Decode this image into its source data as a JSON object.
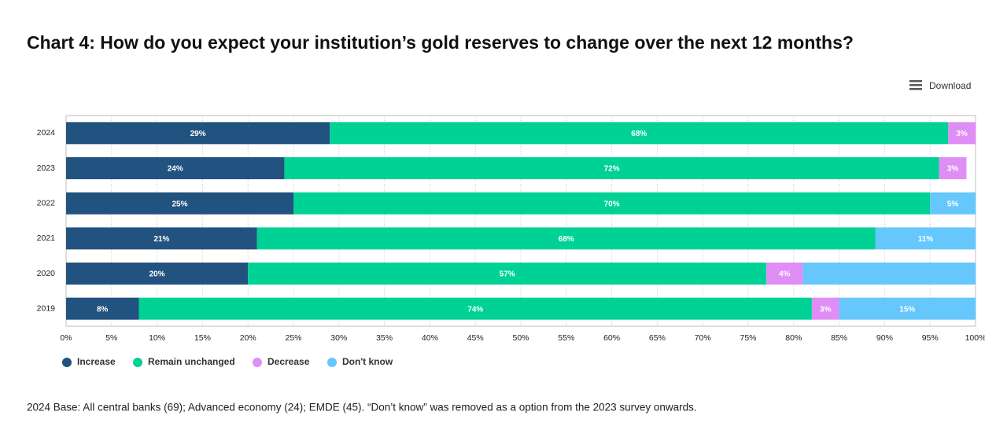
{
  "toolbar": {
    "download": "Download"
  },
  "chart_data": {
    "type": "stacked-bar-horizontal",
    "title": "Chart 4: How do you expect your institution’s gold reserves to change over the next 12 months?",
    "note": "2024 Base: All central banks (69); Advanced economy (24); EMDE (45). “Don’t know” was removed as a option from the 2023 survey onwards.",
    "categories": [
      "2024",
      "2023",
      "2022",
      "2021",
      "2020",
      "2019"
    ],
    "series": [
      {
        "name": "Increase",
        "color": "#22527f",
        "values": [
          29,
          24,
          25,
          21,
          20,
          8
        ],
        "value_labels": [
          "29%",
          "24%",
          "25%",
          "21%",
          "20%",
          "8%"
        ]
      },
      {
        "name": "Remain unchanged",
        "color": "#00d295",
        "values": [
          68,
          72,
          70,
          68,
          57,
          74
        ],
        "value_labels": [
          "68%",
          "72%",
          "70%",
          "68%",
          "57%",
          "74%"
        ]
      },
      {
        "name": "Decrease",
        "color": "#df8ef6",
        "values": [
          3,
          3,
          null,
          null,
          4,
          3
        ],
        "value_labels": [
          "3%",
          "3%",
          null,
          null,
          "4%",
          "3%"
        ]
      },
      {
        "name": "Don't know",
        "color": "#66c7fd",
        "values": [
          null,
          null,
          5,
          11,
          19,
          15
        ],
        "value_labels": [
          null,
          null,
          "5%",
          "11%",
          null,
          "15%"
        ]
      }
    ],
    "xlim": [
      0,
      100
    ],
    "xticks": [
      {
        "value": 0,
        "label": "0%"
      },
      {
        "value": 5,
        "label": "5%"
      },
      {
        "value": 10,
        "label": "10%"
      },
      {
        "value": 15,
        "label": "15%"
      },
      {
        "value": 20,
        "label": "20%"
      },
      {
        "value": 25,
        "label": "25%"
      },
      {
        "value": 30,
        "label": "30%"
      },
      {
        "value": 35,
        "label": "35%"
      },
      {
        "value": 40,
        "label": "40%"
      },
      {
        "value": 45,
        "label": "45%"
      },
      {
        "value": 50,
        "label": "50%"
      },
      {
        "value": 55,
        "label": "55%"
      },
      {
        "value": 60,
        "label": "60%"
      },
      {
        "value": 65,
        "label": "65%"
      },
      {
        "value": 70,
        "label": "70%"
      },
      {
        "value": 75,
        "label": "75%"
      },
      {
        "value": 80,
        "label": "80%"
      },
      {
        "value": 85,
        "label": "85%"
      },
      {
        "value": 90,
        "label": "90%"
      },
      {
        "value": 95,
        "label": "95%"
      },
      {
        "value": 100,
        "label": "100%"
      }
    ],
    "grid": true,
    "legend": "bottom-left"
  }
}
